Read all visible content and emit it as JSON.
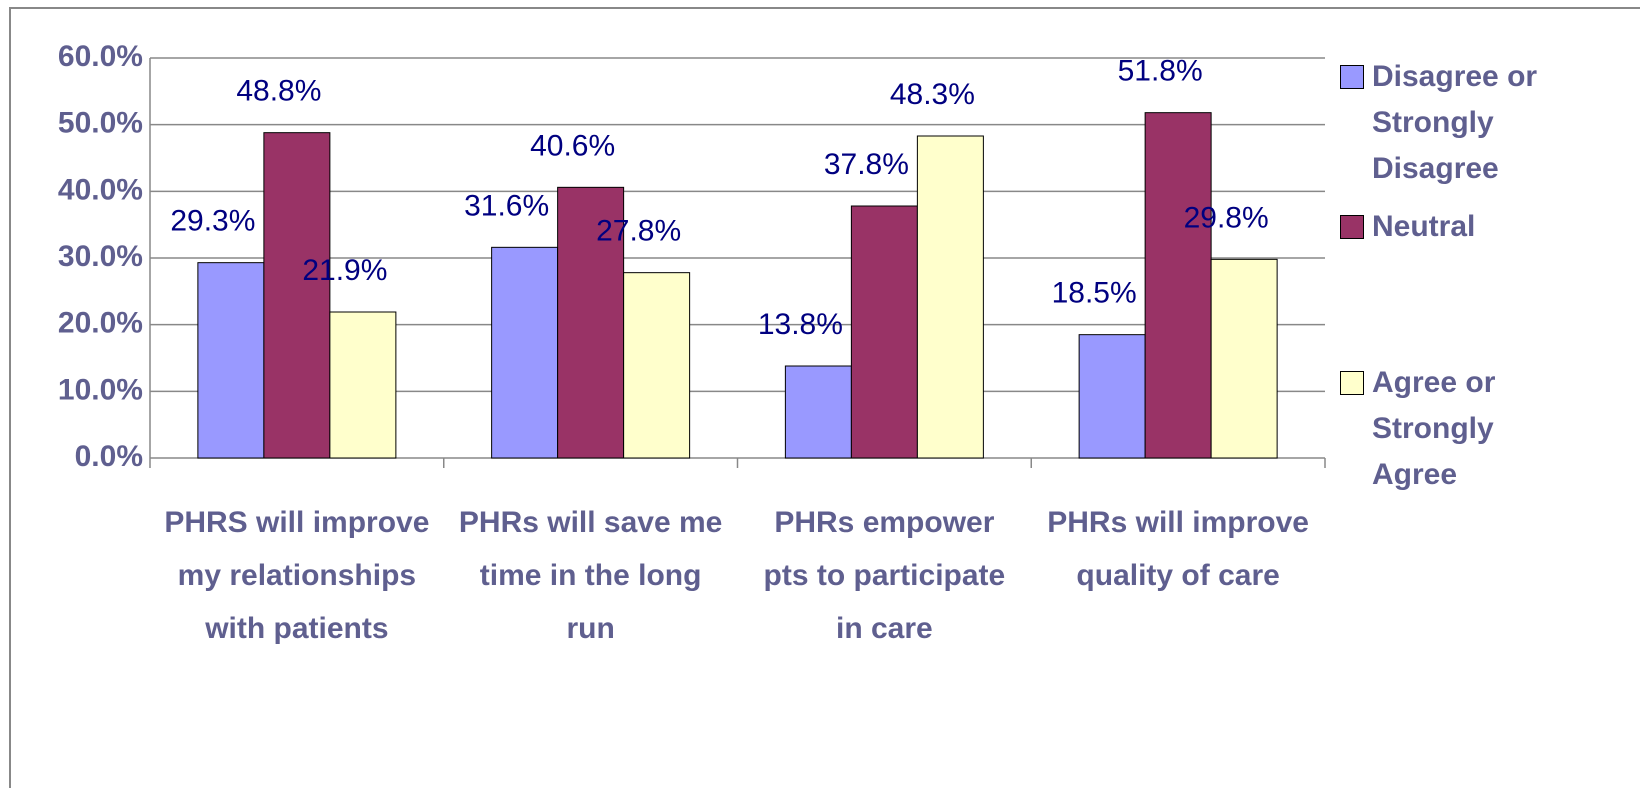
{
  "chart_data": {
    "type": "bar",
    "categories": [
      "PHRS will improve my relationships with patients",
      "PHRs will save me time in the long run",
      "PHRs empower pts to participate in care",
      "PHRs will improve quality of care"
    ],
    "series": [
      {
        "name": "Disagree or Strongly Disagree",
        "color": "#9999ff",
        "values": [
          29.3,
          31.6,
          13.8,
          18.5
        ],
        "value_labels": [
          "29.3%",
          "31.6%",
          "13.8%",
          "18.5%"
        ]
      },
      {
        "name": "Neutral",
        "color": "#993366",
        "values": [
          48.8,
          40.6,
          37.8,
          51.8
        ],
        "value_labels": [
          "48.8%",
          "40.6%",
          "37.8%",
          "51.8%"
        ]
      },
      {
        "name": "Agree or Strongly Agree",
        "color": "#ffffcc",
        "values": [
          21.9,
          27.8,
          48.3,
          29.8
        ],
        "value_labels": [
          "21.9%",
          "27.8%",
          "48.3%",
          "29.8%"
        ]
      }
    ],
    "ylim": [
      0,
      60
    ],
    "yticks": [
      {
        "value": 0,
        "label": "0.0%"
      },
      {
        "value": 10,
        "label": "10.0%"
      },
      {
        "value": 20,
        "label": "20.0%"
      },
      {
        "value": 30,
        "label": "30.0%"
      },
      {
        "value": 40,
        "label": "40.0%"
      },
      {
        "value": 50,
        "label": "50.0%"
      },
      {
        "value": 60,
        "label": "60.0%"
      }
    ],
    "grid": true,
    "legend": "right"
  }
}
